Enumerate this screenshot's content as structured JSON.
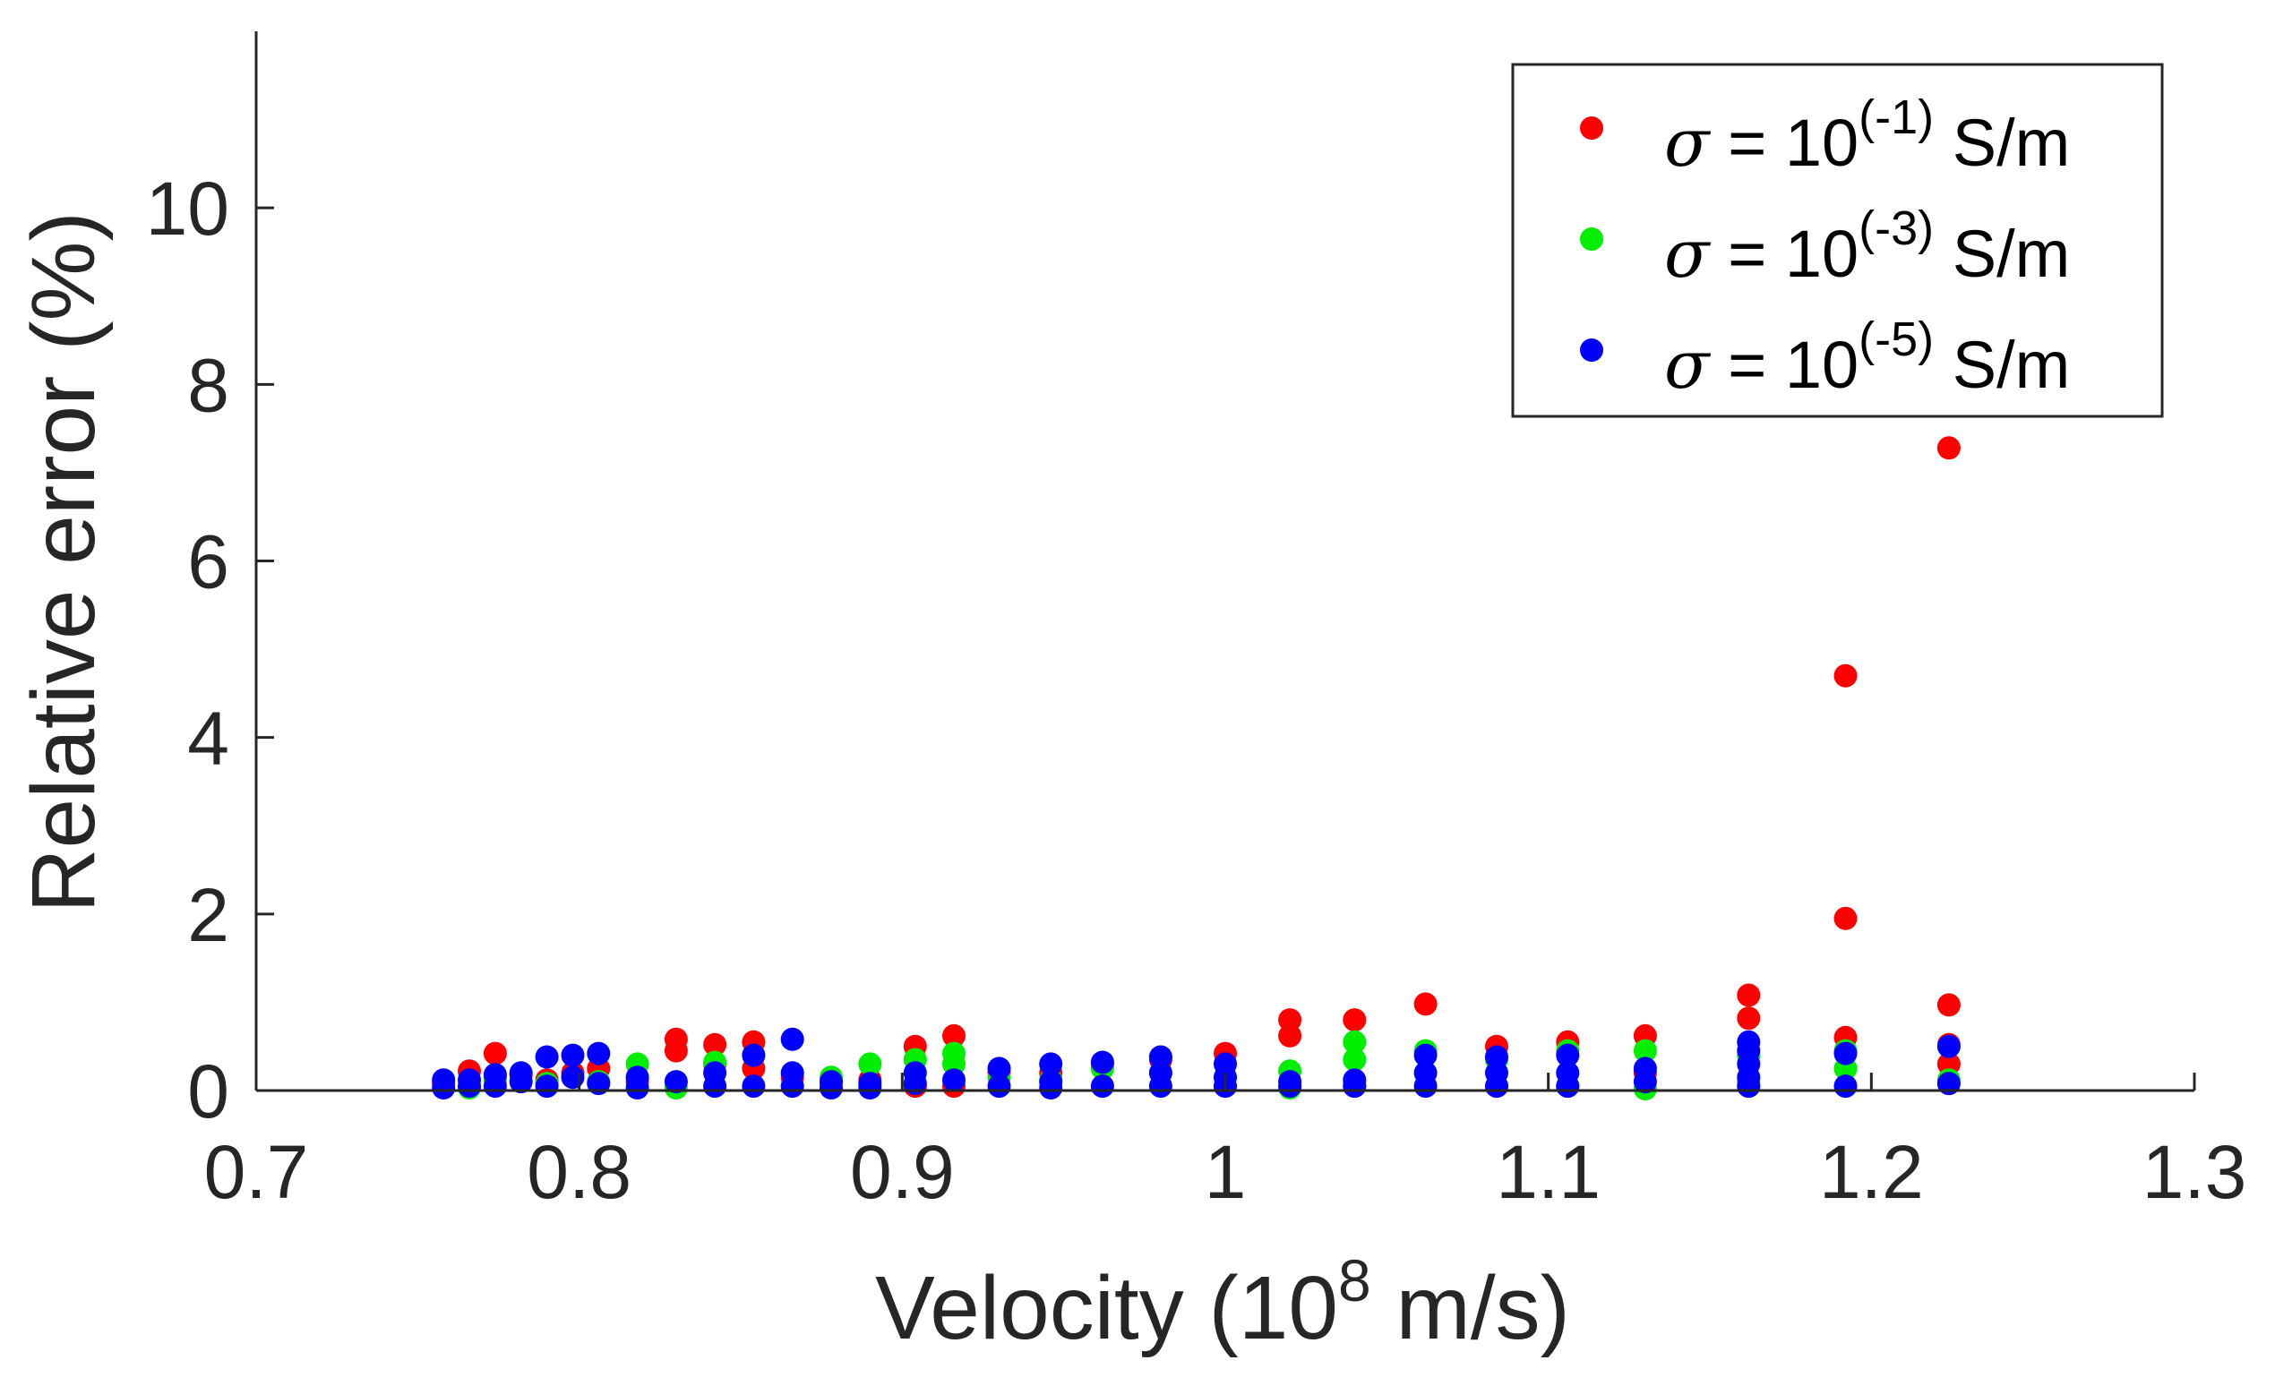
{
  "colors": {
    "axis": "#262626",
    "background": "#ffffff"
  },
  "chart_data": {
    "type": "scatter",
    "title": "",
    "xlabel": "Velocity (10^8 m/s)",
    "xlabel_parts": {
      "main": "Velocity (10",
      "sup": "8",
      "tail": " m/s)"
    },
    "ylabel": "Relative error (%)",
    "xlim": [
      0.7,
      1.3
    ],
    "ylim": [
      0,
      12
    ],
    "xticks": [
      0.7,
      0.8,
      0.9,
      1.0,
      1.1,
      1.2,
      1.3
    ],
    "xtick_labels": [
      "0.7",
      "0.8",
      "0.9",
      "1",
      "1.1",
      "1.2",
      "1.3"
    ],
    "yticks": [
      0,
      2,
      4,
      6,
      8,
      10
    ],
    "ytick_labels": [
      "0",
      "2",
      "4",
      "6",
      "8",
      "10"
    ],
    "grid": false,
    "legend_position": "top-right",
    "series": [
      {
        "name": "σ = 10^(-1) S/m",
        "legend_symbol": "σ",
        "legend_mid": " = 10",
        "legend_sup": "(-1)",
        "legend_tail": " S/m",
        "color": "#ff0000",
        "points": [
          [
            0.758,
            0.08
          ],
          [
            0.766,
            0.22
          ],
          [
            0.774,
            0.42
          ],
          [
            0.774,
            0.15
          ],
          [
            0.782,
            0.18
          ],
          [
            0.79,
            0.12
          ],
          [
            0.798,
            0.2
          ],
          [
            0.806,
            0.25
          ],
          [
            0.818,
            0.1
          ],
          [
            0.83,
            0.58
          ],
          [
            0.83,
            0.45
          ],
          [
            0.842,
            0.52
          ],
          [
            0.842,
            0.3
          ],
          [
            0.854,
            0.55
          ],
          [
            0.854,
            0.25
          ],
          [
            0.866,
            0.15
          ],
          [
            0.878,
            0.1
          ],
          [
            0.89,
            0.12
          ],
          [
            0.904,
            0.5
          ],
          [
            0.904,
            0.05
          ],
          [
            0.916,
            0.62
          ],
          [
            0.916,
            0.05
          ],
          [
            0.93,
            0.2
          ],
          [
            0.946,
            0.2
          ],
          [
            0.962,
            0.3
          ],
          [
            0.98,
            0.35
          ],
          [
            1.0,
            0.42
          ],
          [
            1.0,
            0.05
          ],
          [
            1.02,
            0.8
          ],
          [
            1.02,
            0.62
          ],
          [
            1.04,
            0.8
          ],
          [
            1.04,
            0.05
          ],
          [
            1.062,
            0.98
          ],
          [
            1.084,
            0.5
          ],
          [
            1.084,
            0.05
          ],
          [
            1.106,
            0.55
          ],
          [
            1.106,
            0.05
          ],
          [
            1.13,
            0.62
          ],
          [
            1.13,
            0.2
          ],
          [
            1.162,
            1.08
          ],
          [
            1.162,
            0.82
          ],
          [
            1.162,
            0.05
          ],
          [
            1.192,
            4.7
          ],
          [
            1.192,
            1.95
          ],
          [
            1.192,
            0.6
          ],
          [
            1.224,
            7.28
          ],
          [
            1.224,
            0.97
          ],
          [
            1.224,
            0.52
          ],
          [
            1.224,
            0.3
          ],
          [
            1.224,
            0.08
          ]
        ]
      },
      {
        "name": "σ = 10^(-3) S/m",
        "legend_symbol": "σ",
        "legend_mid": " = 10",
        "legend_sup": "(-3)",
        "legend_tail": " S/m",
        "color": "#00ee00",
        "points": [
          [
            0.766,
            0.03
          ],
          [
            0.774,
            0.12
          ],
          [
            0.79,
            0.08
          ],
          [
            0.806,
            0.1
          ],
          [
            0.818,
            0.3
          ],
          [
            0.83,
            0.03
          ],
          [
            0.842,
            0.32
          ],
          [
            0.854,
            0.4
          ],
          [
            0.878,
            0.15
          ],
          [
            0.89,
            0.3
          ],
          [
            0.904,
            0.35
          ],
          [
            0.916,
            0.42
          ],
          [
            0.916,
            0.3
          ],
          [
            0.93,
            0.15
          ],
          [
            0.946,
            0.12
          ],
          [
            0.962,
            0.25
          ],
          [
            0.98,
            0.2
          ],
          [
            1.0,
            0.15
          ],
          [
            1.02,
            0.22
          ],
          [
            1.02,
            0.03
          ],
          [
            1.04,
            0.55
          ],
          [
            1.04,
            0.35
          ],
          [
            1.062,
            0.45
          ],
          [
            1.084,
            0.35
          ],
          [
            1.106,
            0.45
          ],
          [
            1.13,
            0.45
          ],
          [
            1.13,
            0.02
          ],
          [
            1.162,
            0.4
          ],
          [
            1.162,
            0.1
          ],
          [
            1.192,
            0.45
          ],
          [
            1.192,
            0.25
          ],
          [
            1.224,
            0.5
          ],
          [
            1.224,
            0.12
          ]
        ]
      },
      {
        "name": "σ = 10^(-5) S/m",
        "legend_symbol": "σ",
        "legend_mid": " = 10",
        "legend_sup": "(-5)",
        "legend_tail": " S/m",
        "color": "#0000ff",
        "points": [
          [
            0.758,
            0.12
          ],
          [
            0.758,
            0.03
          ],
          [
            0.766,
            0.12
          ],
          [
            0.766,
            0.05
          ],
          [
            0.774,
            0.18
          ],
          [
            0.774,
            0.05
          ],
          [
            0.782,
            0.2
          ],
          [
            0.782,
            0.1
          ],
          [
            0.79,
            0.38
          ],
          [
            0.79,
            0.05
          ],
          [
            0.798,
            0.4
          ],
          [
            0.798,
            0.15
          ],
          [
            0.806,
            0.42
          ],
          [
            0.806,
            0.08
          ],
          [
            0.818,
            0.15
          ],
          [
            0.818,
            0.03
          ],
          [
            0.83,
            0.1
          ],
          [
            0.842,
            0.2
          ],
          [
            0.842,
            0.05
          ],
          [
            0.854,
            0.4
          ],
          [
            0.854,
            0.05
          ],
          [
            0.866,
            0.58
          ],
          [
            0.866,
            0.2
          ],
          [
            0.866,
            0.05
          ],
          [
            0.878,
            0.1
          ],
          [
            0.878,
            0.03
          ],
          [
            0.89,
            0.08
          ],
          [
            0.89,
            0.03
          ],
          [
            0.904,
            0.2
          ],
          [
            0.904,
            0.08
          ],
          [
            0.916,
            0.12
          ],
          [
            0.93,
            0.25
          ],
          [
            0.93,
            0.05
          ],
          [
            0.946,
            0.3
          ],
          [
            0.946,
            0.1
          ],
          [
            0.946,
            0.03
          ],
          [
            0.962,
            0.32
          ],
          [
            0.962,
            0.05
          ],
          [
            0.98,
            0.38
          ],
          [
            0.98,
            0.2
          ],
          [
            0.98,
            0.05
          ],
          [
            1.0,
            0.3
          ],
          [
            1.0,
            0.15
          ],
          [
            1.0,
            0.05
          ],
          [
            1.02,
            0.1
          ],
          [
            1.02,
            0.05
          ],
          [
            1.04,
            0.12
          ],
          [
            1.04,
            0.05
          ],
          [
            1.062,
            0.4
          ],
          [
            1.062,
            0.2
          ],
          [
            1.062,
            0.05
          ],
          [
            1.084,
            0.38
          ],
          [
            1.084,
            0.2
          ],
          [
            1.084,
            0.05
          ],
          [
            1.106,
            0.4
          ],
          [
            1.106,
            0.2
          ],
          [
            1.106,
            0.05
          ],
          [
            1.13,
            0.25
          ],
          [
            1.13,
            0.1
          ],
          [
            1.162,
            0.55
          ],
          [
            1.162,
            0.45
          ],
          [
            1.162,
            0.3
          ],
          [
            1.162,
            0.15
          ],
          [
            1.162,
            0.05
          ],
          [
            1.192,
            0.42
          ],
          [
            1.192,
            0.05
          ],
          [
            1.224,
            0.5
          ],
          [
            1.224,
            0.08
          ]
        ]
      }
    ]
  }
}
